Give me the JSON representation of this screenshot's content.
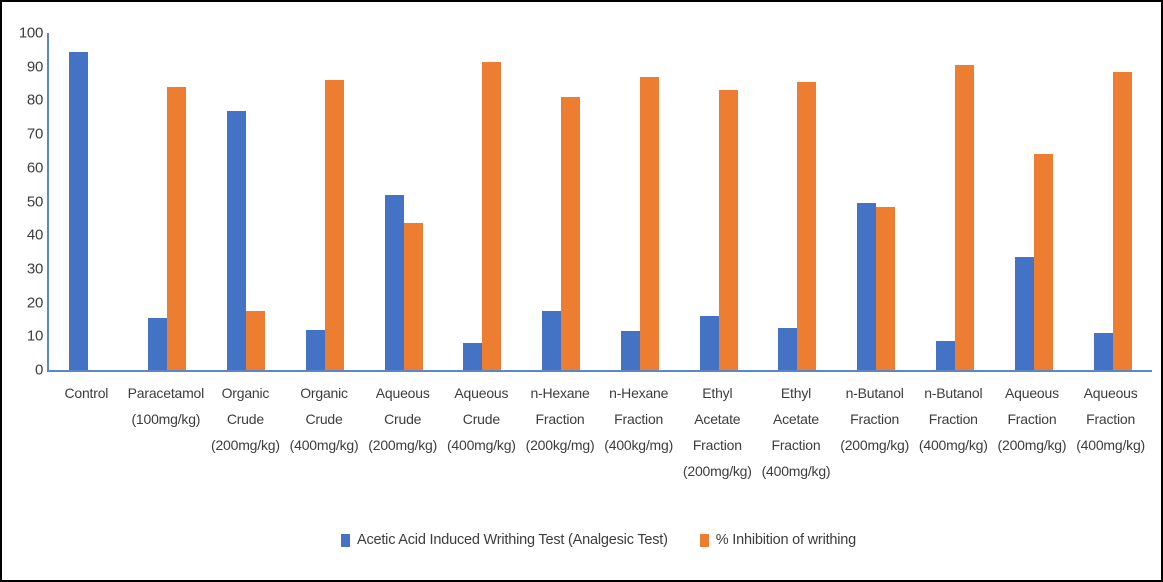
{
  "figure": {
    "background": "#ffffff",
    "frame_border_color": "#000000"
  },
  "chart_data": {
    "type": "bar",
    "title": "",
    "xlabel": "",
    "ylabel": "",
    "categories": [
      "Control",
      "Paracetamol (100mg/kg)",
      "Organic Crude (200mg/kg)",
      "Organic Crude (400mg/kg)",
      "Aqueous Crude (200mg/kg)",
      "Aqueous Crude (400mg/kg)",
      "n-Hexane Fraction (200kg/mg)",
      "n-Hexane Fraction (400kg/mg)",
      "Ethyl Acetate Fraction (200mg/kg)",
      "Ethyl Acetate Fraction (400mg/kg)",
      "n-Butanol Fraction (200mg/kg)",
      "n-Butanol Fraction (400mg/kg)",
      "Aqueous Fraction (200mg/kg)",
      "Aqueous Fraction (400mg/kg)"
    ],
    "series": [
      {
        "name": "Acetic Acid Induced Writhing Test (Analgesic Test)",
        "color": "#4472C4",
        "values": [
          94.5,
          15.5,
          77,
          12,
          52,
          8,
          17.5,
          11.5,
          16,
          12.5,
          49.5,
          8.5,
          33.5,
          11
        ]
      },
      {
        "name": "% Inhibition of writhing",
        "color": "#ED7D31",
        "values": [
          0,
          84,
          17.5,
          86,
          43.5,
          91.5,
          81,
          87,
          83,
          85.5,
          48.5,
          90.5,
          64,
          88.5
        ]
      }
    ],
    "ylim": [
      0,
      100
    ],
    "ytick_interval": 10,
    "yticks": [
      0,
      10,
      20,
      30,
      40,
      50,
      60,
      70,
      80,
      90,
      100
    ],
    "grid": false,
    "legend_position": "bottom",
    "axis_color": "#5b87c6",
    "text_color": "#3d3d3d"
  }
}
